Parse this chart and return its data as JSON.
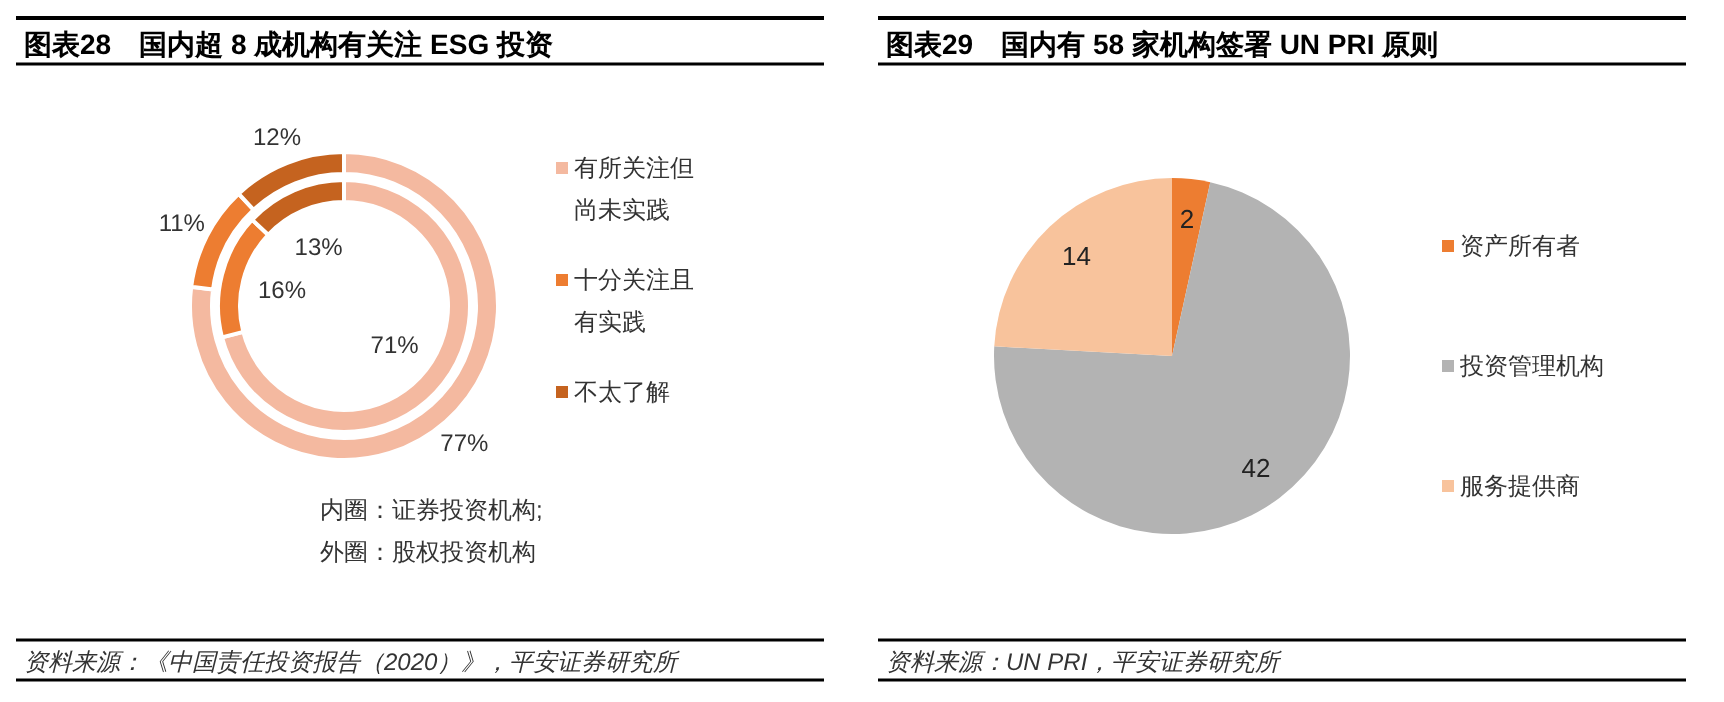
{
  "chart_data": [
    {
      "type": "donut",
      "title": "图表28　国内超 8 成机构有关注 ESG 投资",
      "categories": [
        "有所关注但尚未实践",
        "十分关注且有实践",
        "不太了解"
      ],
      "colors": [
        "#f4b9a0",
        "#ed7d31",
        "#c5631f"
      ],
      "series": [
        {
          "values": [
            71,
            16,
            13
          ],
          "value_labels": [
            "71%",
            "16%",
            "13%"
          ]
        },
        {
          "values": [
            77,
            11,
            12
          ],
          "value_labels": [
            "77%",
            "11%",
            "12%"
          ]
        }
      ],
      "legend": "right",
      "annotations": [
        "内圈：证券投资机构;",
        "外圈：股权投资机构",
        "资料来源：《中国责任投资报告（2020）》，平安证券研究所"
      ]
    },
    {
      "type": "pie",
      "title": "图表29　国内有 58 家机构签署 UN PRI 原则",
      "categories": [
        "资产所有者",
        "投资管理机构",
        "服务提供商"
      ],
      "values": [
        2,
        42,
        14
      ],
      "colors": [
        "#ed7d31",
        "#b3b3b3",
        "#f8c39c"
      ],
      "data_labels": true,
      "legend": "right",
      "annotations": [
        "资料来源：UN PRI，平安证券研究所"
      ]
    }
  ]
}
